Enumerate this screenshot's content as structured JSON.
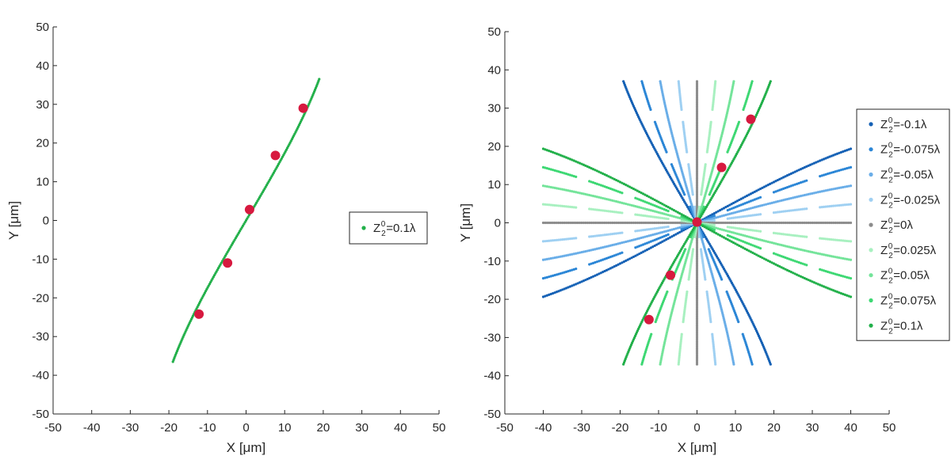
{
  "chart_data": [
    {
      "type": "scatter",
      "title": "",
      "xlabel": "X [μm]",
      "ylabel": "Y [μm]",
      "xlim": [
        -50,
        50
      ],
      "ylim": [
        -50,
        50
      ],
      "xticks": [
        -50,
        -40,
        -30,
        -20,
        -10,
        0,
        10,
        20,
        30,
        40,
        50
      ],
      "yticks": [
        -50,
        -40,
        -30,
        -20,
        -10,
        0,
        10,
        20,
        30,
        40,
        50
      ],
      "grid": false,
      "legend_position": "right",
      "series": [
        {
          "label": {
            "pre": "Z",
            "sub": "2",
            "sup": "0",
            "post": "=0.1λ"
          },
          "color": "#22b04a",
          "coefficient": 0.1,
          "y_range": [
            -36.5,
            36.5
          ]
        }
      ],
      "markers": {
        "color": "#d7193f",
        "points": [
          [
            -12.2,
            -24.2
          ],
          [
            -4.8,
            -11.0
          ],
          [
            0.9,
            2.8
          ],
          [
            7.6,
            16.8
          ],
          [
            14.8,
            29.0
          ]
        ]
      }
    },
    {
      "type": "scatter",
      "title": "",
      "xlabel": "X [μm]",
      "ylabel": "Y [μm]",
      "xlim": [
        -50,
        50
      ],
      "ylim": [
        -50,
        50
      ],
      "xticks": [
        -50,
        -40,
        -30,
        -20,
        -10,
        0,
        10,
        20,
        30,
        40,
        50
      ],
      "yticks": [
        -50,
        -40,
        -30,
        -20,
        -10,
        0,
        10,
        20,
        30,
        40,
        50
      ],
      "grid": false,
      "legend_position": "right",
      "series": [
        {
          "label": {
            "pre": "Z",
            "sub": "2",
            "sup": "0",
            "post": "=-0.1λ"
          },
          "color": "#1561b5",
          "coefficient": -0.1
        },
        {
          "label": {
            "pre": "Z",
            "sub": "2",
            "sup": "0",
            "post": "=-0.075λ"
          },
          "color": "#2b86d6",
          "coefficient": -0.075
        },
        {
          "label": {
            "pre": "Z",
            "sub": "2",
            "sup": "0",
            "post": "=-0.05λ"
          },
          "color": "#6aaee8",
          "coefficient": -0.05
        },
        {
          "label": {
            "pre": "Z",
            "sub": "2",
            "sup": "0",
            "post": "=-0.025λ"
          },
          "color": "#9fd0f2",
          "coefficient": -0.025
        },
        {
          "label": {
            "pre": "Z",
            "sub": "2",
            "sup": "0",
            "post": "=0λ"
          },
          "color": "#8c8c8c",
          "coefficient": 0
        },
        {
          "label": {
            "pre": "Z",
            "sub": "2",
            "sup": "0",
            "post": "=0.025λ"
          },
          "color": "#a8f0c0",
          "coefficient": 0.025
        },
        {
          "label": {
            "pre": "Z",
            "sub": "2",
            "sup": "0",
            "post": "=0.05λ"
          },
          "color": "#74e49a",
          "coefficient": 0.05
        },
        {
          "label": {
            "pre": "Z",
            "sub": "2",
            "sup": "0",
            "post": "=0.075λ"
          },
          "color": "#3dd873",
          "coefficient": 0.075
        },
        {
          "label": {
            "pre": "Z",
            "sub": "2",
            "sup": "0",
            "post": "=0.1λ"
          },
          "color": "#22b04a",
          "coefficient": 0.1
        }
      ],
      "markers": {
        "color": "#d7193f",
        "points": [
          [
            -12.5,
            -25.3
          ],
          [
            -6.9,
            -13.7
          ],
          [
            0.0,
            0.2
          ],
          [
            6.4,
            14.5
          ],
          [
            14.0,
            27.1
          ]
        ]
      }
    }
  ]
}
